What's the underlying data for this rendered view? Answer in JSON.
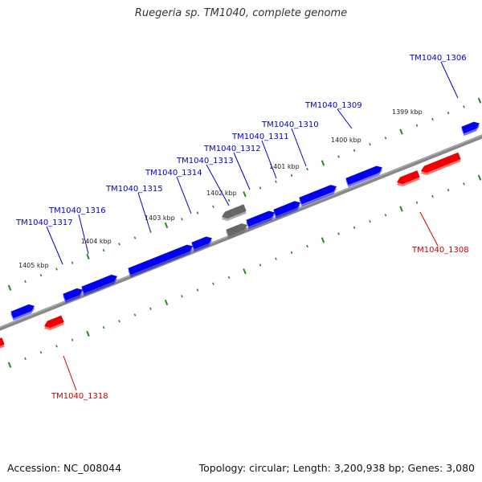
{
  "title": "Ruegeria sp. TM1040, complete genome",
  "footer": {
    "accession": "Accession: NC_008044",
    "topology": "Topology: circular; Length: 3,200,938 bp; Genes: 3,080"
  },
  "colors": {
    "forward_strand": "#0000ee",
    "reverse_strand": "#ee0000",
    "other_feature": "#666666",
    "backbone": "#888888",
    "tick": "#228b22",
    "label_forward": "#0000cc",
    "label_reverse": "#cc0000"
  },
  "kbp_labels": [
    "1399 kbp",
    "1400 kbp",
    "1401 kbp",
    "1402 kbp",
    "1403 kbp",
    "1404 kbp",
    "1405 kbp"
  ],
  "gene_labels": {
    "forward": [
      "TM1040_1306",
      "TM1040_1309",
      "TM1040_1310",
      "TM1040_1311",
      "TM1040_1312",
      "TM1040_1313",
      "TM1040_1314",
      "TM1040_1315",
      "TM1040_1316",
      "TM1040_1317"
    ],
    "reverse": [
      "TM1040_1308",
      "TM1040_1318"
    ]
  }
}
